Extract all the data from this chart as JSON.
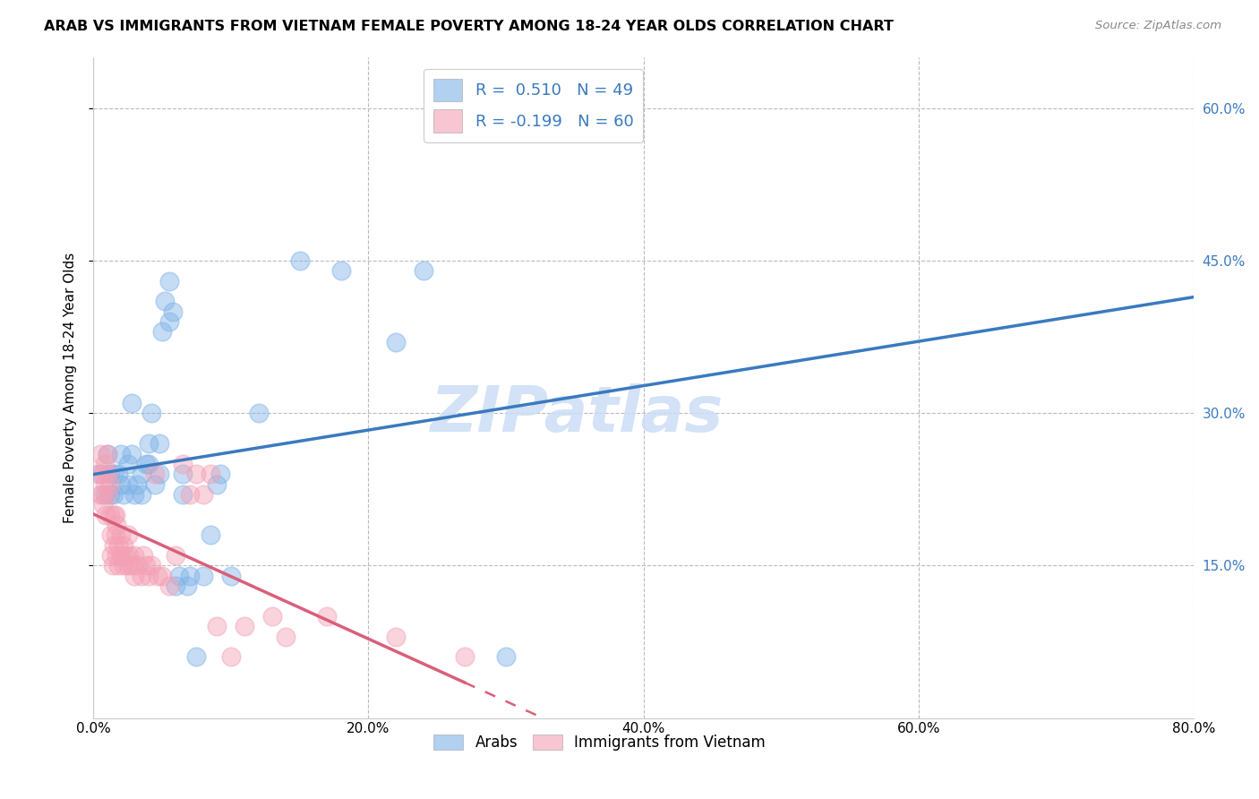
{
  "title": "ARAB VS IMMIGRANTS FROM VIETNAM FEMALE POVERTY AMONG 18-24 YEAR OLDS CORRELATION CHART",
  "source": "Source: ZipAtlas.com",
  "ylabel_label": "Female Poverty Among 18-24 Year Olds",
  "legend_bottom": [
    "Arabs",
    "Immigrants from Vietnam"
  ],
  "arab_R": 0.51,
  "arab_N": 49,
  "vietnam_R": -0.199,
  "vietnam_N": 60,
  "arab_color": "#7fb3e8",
  "vietnam_color": "#f4a0b5",
  "trendline_arab_color": "#3a7abf",
  "trendline_vietnam_color": "#d9607a",
  "watermark_color": "#ccddf5",
  "xlim": [
    0.0,
    0.8
  ],
  "ylim": [
    0.0,
    0.65
  ],
  "ytick_vals": [
    0.15,
    0.3,
    0.45,
    0.6
  ],
  "xtick_vals": [
    0.0,
    0.2,
    0.4,
    0.6,
    0.8
  ],
  "arab_scatter": [
    [
      0.005,
      0.24
    ],
    [
      0.008,
      0.22
    ],
    [
      0.01,
      0.26
    ],
    [
      0.012,
      0.22
    ],
    [
      0.012,
      0.24
    ],
    [
      0.015,
      0.22
    ],
    [
      0.015,
      0.24
    ],
    [
      0.018,
      0.24
    ],
    [
      0.02,
      0.23
    ],
    [
      0.02,
      0.26
    ],
    [
      0.022,
      0.22
    ],
    [
      0.025,
      0.23
    ],
    [
      0.025,
      0.25
    ],
    [
      0.028,
      0.26
    ],
    [
      0.028,
      0.31
    ],
    [
      0.03,
      0.22
    ],
    [
      0.032,
      0.23
    ],
    [
      0.035,
      0.22
    ],
    [
      0.035,
      0.24
    ],
    [
      0.038,
      0.25
    ],
    [
      0.04,
      0.25
    ],
    [
      0.04,
      0.27
    ],
    [
      0.042,
      0.3
    ],
    [
      0.045,
      0.23
    ],
    [
      0.048,
      0.24
    ],
    [
      0.048,
      0.27
    ],
    [
      0.05,
      0.38
    ],
    [
      0.052,
      0.41
    ],
    [
      0.055,
      0.39
    ],
    [
      0.055,
      0.43
    ],
    [
      0.058,
      0.4
    ],
    [
      0.06,
      0.13
    ],
    [
      0.062,
      0.14
    ],
    [
      0.065,
      0.22
    ],
    [
      0.065,
      0.24
    ],
    [
      0.068,
      0.13
    ],
    [
      0.07,
      0.14
    ],
    [
      0.075,
      0.06
    ],
    [
      0.08,
      0.14
    ],
    [
      0.085,
      0.18
    ],
    [
      0.09,
      0.23
    ],
    [
      0.092,
      0.24
    ],
    [
      0.1,
      0.14
    ],
    [
      0.12,
      0.3
    ],
    [
      0.15,
      0.45
    ],
    [
      0.18,
      0.44
    ],
    [
      0.22,
      0.37
    ],
    [
      0.24,
      0.44
    ],
    [
      0.3,
      0.06
    ]
  ],
  "vietnam_scatter": [
    [
      0.003,
      0.24
    ],
    [
      0.005,
      0.22
    ],
    [
      0.005,
      0.26
    ],
    [
      0.006,
      0.22
    ],
    [
      0.007,
      0.21
    ],
    [
      0.007,
      0.24
    ],
    [
      0.008,
      0.23
    ],
    [
      0.008,
      0.25
    ],
    [
      0.009,
      0.2
    ],
    [
      0.01,
      0.22
    ],
    [
      0.01,
      0.24
    ],
    [
      0.01,
      0.26
    ],
    [
      0.012,
      0.2
    ],
    [
      0.012,
      0.23
    ],
    [
      0.013,
      0.16
    ],
    [
      0.013,
      0.18
    ],
    [
      0.014,
      0.15
    ],
    [
      0.015,
      0.17
    ],
    [
      0.015,
      0.2
    ],
    [
      0.016,
      0.18
    ],
    [
      0.016,
      0.2
    ],
    [
      0.017,
      0.16
    ],
    [
      0.017,
      0.19
    ],
    [
      0.018,
      0.15
    ],
    [
      0.018,
      0.17
    ],
    [
      0.02,
      0.16
    ],
    [
      0.02,
      0.18
    ],
    [
      0.022,
      0.15
    ],
    [
      0.022,
      0.17
    ],
    [
      0.023,
      0.16
    ],
    [
      0.025,
      0.15
    ],
    [
      0.025,
      0.18
    ],
    [
      0.026,
      0.16
    ],
    [
      0.028,
      0.15
    ],
    [
      0.03,
      0.14
    ],
    [
      0.03,
      0.16
    ],
    [
      0.032,
      0.15
    ],
    [
      0.035,
      0.14
    ],
    [
      0.036,
      0.16
    ],
    [
      0.038,
      0.15
    ],
    [
      0.04,
      0.14
    ],
    [
      0.042,
      0.15
    ],
    [
      0.045,
      0.24
    ],
    [
      0.047,
      0.14
    ],
    [
      0.05,
      0.14
    ],
    [
      0.055,
      0.13
    ],
    [
      0.06,
      0.16
    ],
    [
      0.065,
      0.25
    ],
    [
      0.07,
      0.22
    ],
    [
      0.075,
      0.24
    ],
    [
      0.08,
      0.22
    ],
    [
      0.085,
      0.24
    ],
    [
      0.09,
      0.09
    ],
    [
      0.1,
      0.06
    ],
    [
      0.11,
      0.09
    ],
    [
      0.13,
      0.1
    ],
    [
      0.14,
      0.08
    ],
    [
      0.17,
      0.1
    ],
    [
      0.22,
      0.08
    ],
    [
      0.27,
      0.06
    ]
  ]
}
